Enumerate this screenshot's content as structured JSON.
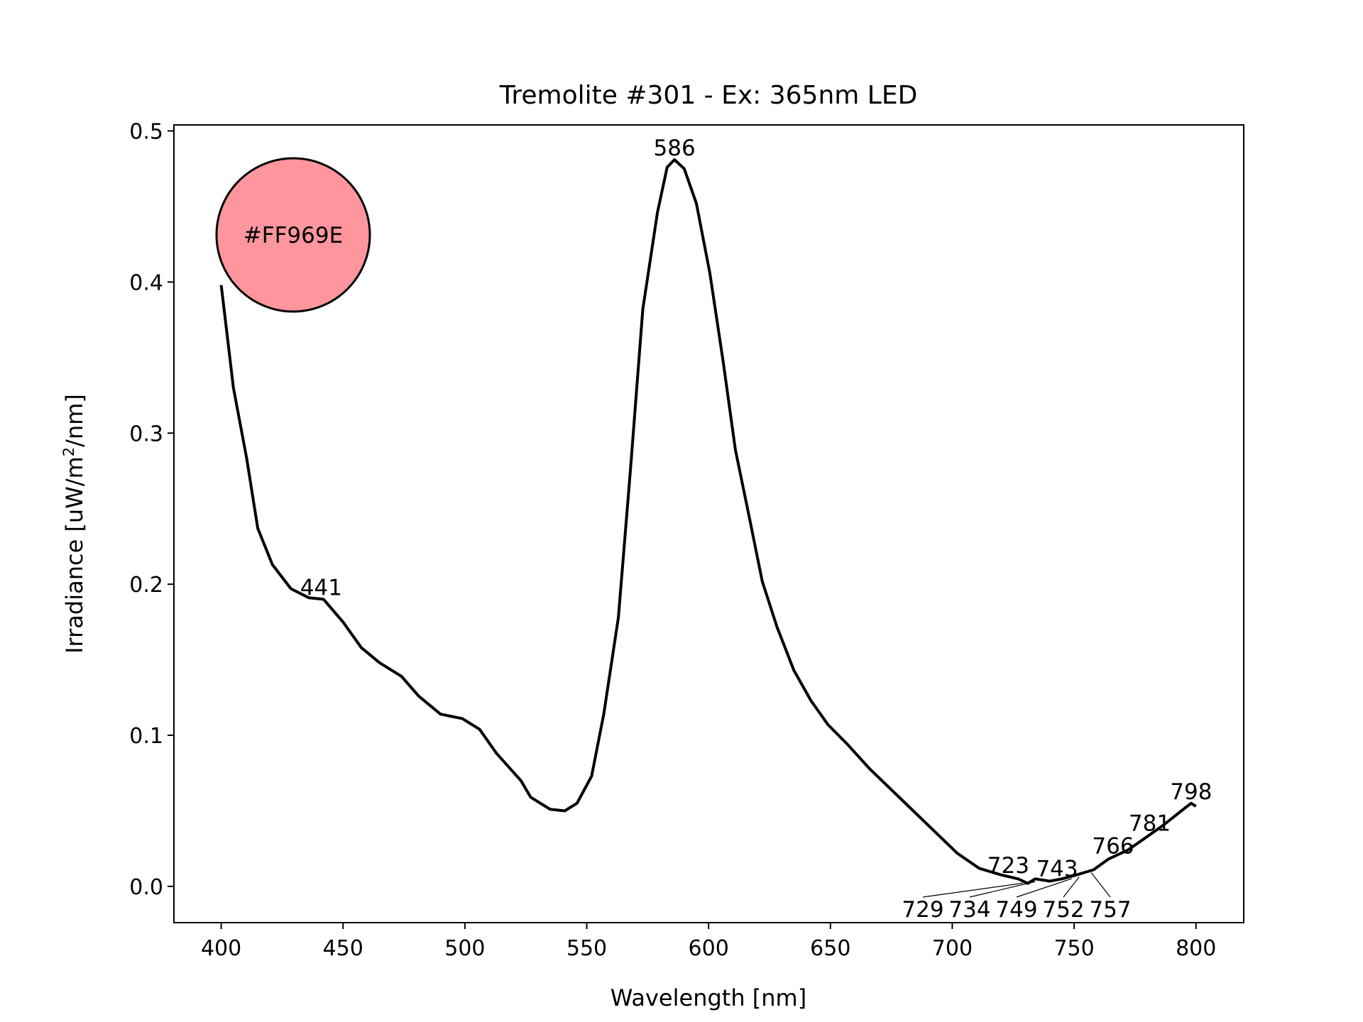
{
  "chart_data": {
    "type": "line",
    "title": "Tremolite #301 - Ex: 365nm LED",
    "xlabel": "Wavelength [nm]",
    "ylabel_main": "Irradiance [uW/m",
    "ylabel_sup": "2",
    "ylabel_tail": "/nm]",
    "xlim": [
      380.6,
      819.6
    ],
    "ylim": [
      -0.024,
      0.504
    ],
    "xticks": [
      400,
      450,
      500,
      550,
      600,
      650,
      700,
      750,
      800
    ],
    "yticks": [
      0.0,
      0.1,
      0.2,
      0.3,
      0.4,
      0.5
    ],
    "ytick_labels": [
      "0.0",
      "0.1",
      "0.2",
      "0.3",
      "0.4",
      "0.5"
    ],
    "grid": false,
    "line_color": "#000000",
    "swatch": {
      "label": "#FF969E",
      "color": "#FF969E"
    },
    "series": [
      {
        "name": "spectrum",
        "x": [
          400,
          405,
          410.5,
          415,
          421,
          428.6,
          436,
          442,
          450,
          457.5,
          465,
          474,
          481,
          490,
          499,
          506,
          513,
          523,
          527,
          535,
          541,
          546,
          552,
          557,
          563,
          568,
          573,
          579,
          583,
          586,
          590,
          595,
          600.5,
          606,
          611,
          617,
          622,
          628,
          635,
          642,
          649,
          657,
          666,
          675,
          684,
          693,
          702,
          711,
          720,
          727,
          731,
          734,
          740,
          745,
          751,
          758,
          764,
          772,
          780,
          787,
          794,
          798,
          800
        ],
        "y": [
          0.398,
          0.33,
          0.283,
          0.237,
          0.213,
          0.197,
          0.191,
          0.19,
          0.175,
          0.158,
          0.148,
          0.139,
          0.126,
          0.114,
          0.111,
          0.104,
          0.088,
          0.07,
          0.059,
          0.051,
          0.05,
          0.055,
          0.073,
          0.114,
          0.178,
          0.277,
          0.382,
          0.446,
          0.476,
          0.481,
          0.475,
          0.452,
          0.406,
          0.347,
          0.289,
          0.242,
          0.202,
          0.172,
          0.143,
          0.123,
          0.107,
          0.094,
          0.078,
          0.064,
          0.05,
          0.036,
          0.022,
          0.012,
          0.0076,
          0.005,
          0.002,
          0.005,
          0.0035,
          0.005,
          0.0076,
          0.011,
          0.018,
          0.024,
          0.033,
          0.041,
          0.05,
          0.055,
          0.053
        ]
      }
    ],
    "annotations": [
      {
        "label": "441",
        "x": 441,
        "y": 0.19
      },
      {
        "label": "586",
        "x": 586,
        "y": 0.481
      },
      {
        "label": "723",
        "x": 723,
        "y": 0.006
      },
      {
        "label": "729",
        "x": 729,
        "y": 0.004
      },
      {
        "label": "734",
        "x": 734,
        "y": 0.005
      },
      {
        "label": "743",
        "x": 743,
        "y": 0.004
      },
      {
        "label": "749",
        "x": 749,
        "y": 0.007
      },
      {
        "label": "752",
        "x": 752,
        "y": 0.008
      },
      {
        "label": "757",
        "x": 757,
        "y": 0.011
      },
      {
        "label": "766",
        "x": 766,
        "y": 0.019
      },
      {
        "label": "781",
        "x": 781,
        "y": 0.034
      },
      {
        "label": "798",
        "x": 798,
        "y": 0.055
      }
    ]
  }
}
